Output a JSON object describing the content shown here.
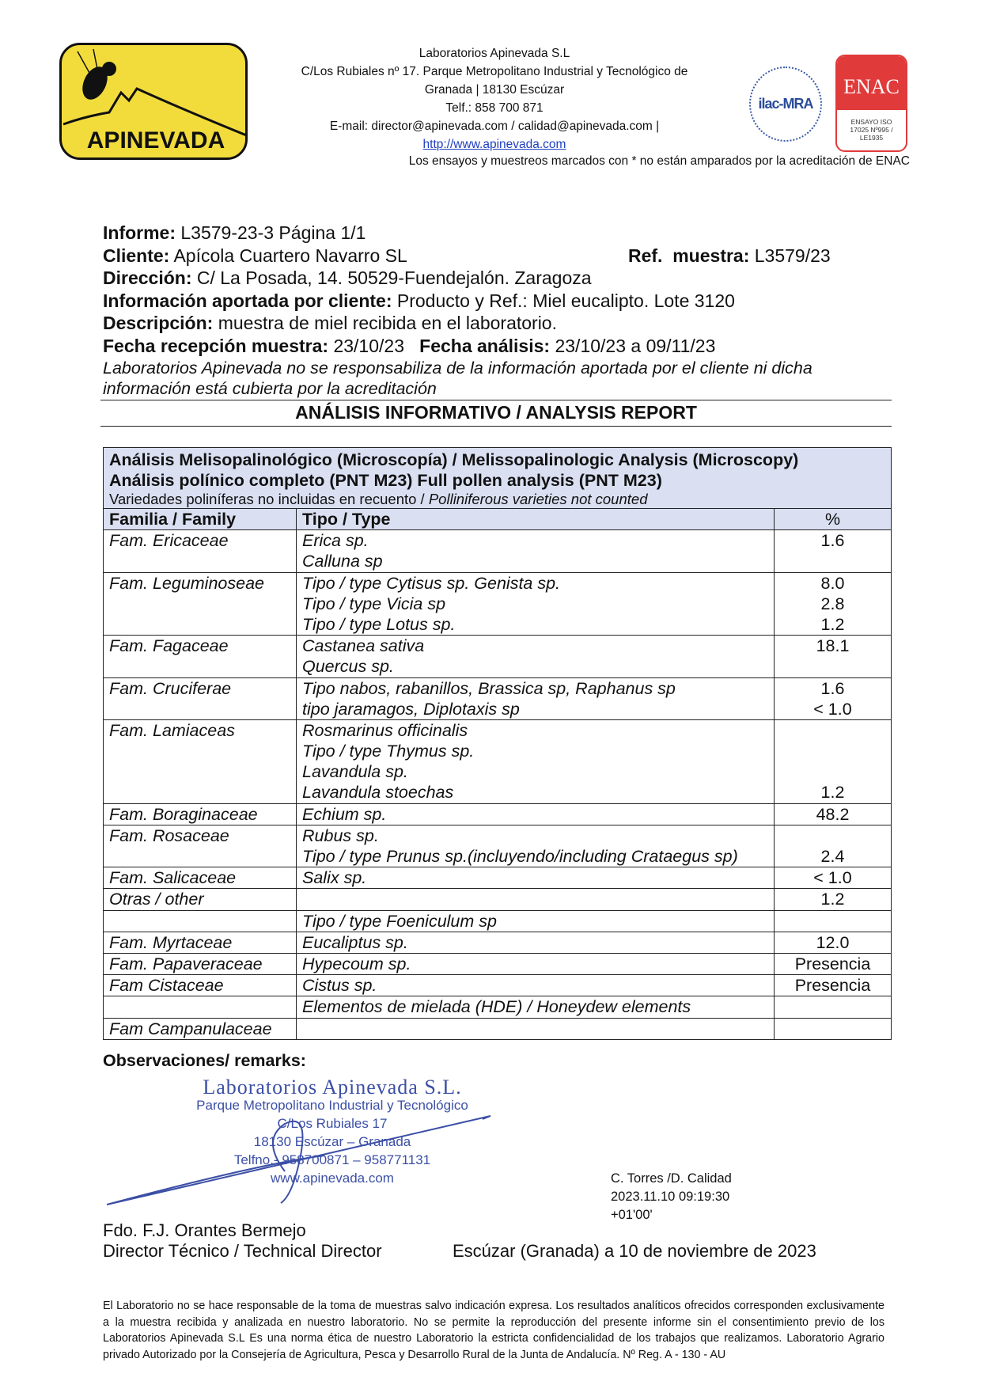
{
  "header": {
    "logo_text": "APINEVADA",
    "company": "Laboratorios Apinevada S.L",
    "address1": "C/Los Rubiales nº 17. Parque Metropolitano Industrial y Tecnológico de",
    "address2": "Granada | 18130 Escúzar",
    "phone": "Telf.: 858 700 871",
    "email": "E-mail: director@apinevada.com / calidad@apinevada.com |",
    "website": "http://www.apinevada.com",
    "ilac_logo_text": "ilac-MRA",
    "enac_logo_text": "ENAC",
    "enac_sub": "ENSAYO ISO 17025 Nº995 / LE1935",
    "enac_note": "Los ensayos y muestreos marcados con * no están amparados por la acreditación de ENAC"
  },
  "report": {
    "informe_label": "Informe:",
    "informe_value": " L3579-23-3 Página 1/1",
    "cliente_label": "Cliente:",
    "cliente_value": " Apícola Cuartero Navarro SL",
    "ref_label": "Ref.  muestra:",
    "ref_value": " L3579/23",
    "direccion_label": "Dirección:",
    "direccion_value": " C/ La Posada, 14. 50529-Fuendejalón. Zaragoza",
    "info_label": "Información aportada por cliente:",
    "info_value": " Producto y Ref.: Miel eucalipto. Lote 3120",
    "desc_label": "Descripción:",
    "desc_value": " muestra de miel recibida en el laboratorio.",
    "fecha_rec_label": "Fecha recepción muestra:",
    "fecha_rec_value": " 23/10/23",
    "fecha_an_label": "Fecha análisis:",
    "fecha_an_value": " 23/10/23 a 09/11/23",
    "disclaimer1": "Laboratorios Apinevada no se responsabiliza de la información aportada por el cliente ni dicha",
    "disclaimer2": "información está cubierta por la acreditación",
    "title": "ANÁLISIS INFORMATIVO / ANALYSIS REPORT"
  },
  "table": {
    "caption1": "Análisis Melisopalinológico (Microscopía) / Melissopalinologic Analysis (Microscopy)",
    "caption2": "Análisis polínico completo (PNT M23) Full pollen analysis (PNT M23)",
    "caption3a": "Variedades poliníferas no incluidas en recuento / ",
    "caption3b": "Polliniferous varieties not counted",
    "headers": [
      "Familia / Family",
      "Tipo / Type",
      "%"
    ],
    "rows": [
      {
        "family": "Fam. Ericaceae",
        "types": [
          "Erica sp.",
          "Calluna sp"
        ],
        "pct": [
          "1.6",
          ""
        ]
      },
      {
        "family": "Fam. Leguminoseae",
        "types": [
          "Tipo / type Cytisus sp. Genista sp.",
          "Tipo / type Vicia sp",
          "Tipo / type Lotus sp."
        ],
        "pct": [
          "8.0",
          "2.8",
          "1.2"
        ]
      },
      {
        "family": "Fam. Fagaceae",
        "types": [
          "Castanea sativa",
          "Quercus sp."
        ],
        "pct": [
          "18.1",
          ""
        ]
      },
      {
        "family": "Fam. Cruciferae",
        "types": [
          "Tipo nabos, rabanillos, Brassica sp, Raphanus sp",
          "tipo jaramagos, Diplotaxis sp"
        ],
        "pct": [
          "1.6",
          "< 1.0"
        ]
      },
      {
        "family": "Fam. Lamiaceas",
        "types": [
          "Rosmarinus officinalis",
          "Tipo / type Thymus sp.",
          "Lavandula sp.",
          "Lavandula stoechas"
        ],
        "pct": [
          "",
          "",
          "",
          "1.2"
        ]
      },
      {
        "family": "Fam. Boraginaceae",
        "types": [
          "Echium sp."
        ],
        "pct": [
          "48.2"
        ]
      },
      {
        "family": "Fam. Rosaceae",
        "types": [
          "Rubus sp.",
          "Tipo / type Prunus sp.(incluyendo/including Crataegus sp)"
        ],
        "pct": [
          "",
          "2.4"
        ]
      },
      {
        "family": "Fam. Salicaceae",
        "types": [
          "Salix sp."
        ],
        "pct": [
          "< 1.0"
        ]
      },
      {
        "family": "Otras / other",
        "types": [
          ""
        ],
        "pct": [
          "1.2"
        ]
      },
      {
        "family": "",
        "types": [
          "Tipo / type Foeniculum sp"
        ],
        "pct": [
          ""
        ]
      },
      {
        "family": "Fam. Myrtaceae",
        "types": [
          "Eucaliptus sp."
        ],
        "pct": [
          "12.0"
        ]
      },
      {
        "family": "Fam. Papaveraceae",
        "types": [
          "Hypecoum sp."
        ],
        "pct": [
          "Presencia"
        ]
      },
      {
        "family": "Fam Cistaceae",
        "types": [
          "Cistus sp."
        ],
        "pct": [
          "Presencia"
        ]
      },
      {
        "family": "",
        "types": [
          "Elementos de mielada (HDE) / Honeydew elements"
        ],
        "pct": [
          ""
        ]
      },
      {
        "family": "Fam Campanulaceae",
        "types": [
          ""
        ],
        "pct": [
          ""
        ]
      }
    ]
  },
  "remarks_label": "Observaciones/ remarks:",
  "stamp": {
    "line1": "Laboratorios Apinevada S.L.",
    "line2": "Parque Metropolitano Industrial y Tecnológico",
    "line3": "C/Los Rubiales 17",
    "line4": "18130 Escúzar – Granada",
    "line5": "Telfno.- 958700871 – 958771131",
    "line6": "www.apinevada.com"
  },
  "digital_signature": {
    "line1": "C. Torres /D. Calidad",
    "line2": "2023.11.10 09:19:30",
    "line3": "+01'00'"
  },
  "signer": {
    "name": "Fdo. F.J. Orantes Bermejo",
    "role": "Director Técnico / Technical Director"
  },
  "place_date": "Escúzar (Granada) a 10 de noviembre de 2023",
  "footer": "El Laboratorio no se hace responsable de la toma de muestras salvo indicación expresa. Los resultados analíticos ofrecidos corresponden exclusivamente a la muestra recibida y analizada en nuestro laboratorio. No se permite la reproducción del presente informe sin el consentimiento previo de los Laboratorios Apinevada S.L Es una norma ética de nuestro Laboratorio la estricta confidencialidad de los trabajos que realizamos. Laboratorio Agrario privado Autorizado por la Consejería de Agricultura, Pesca y Desarrollo Rural de la Junta de Andalucía. Nº Reg. A - 130 - AU",
  "colors": {
    "header_fill": "#dae0f2",
    "logo_yellow": "#f2dc3c",
    "enac_red": "#e03a3a",
    "stamp_blue": "#3b4fa6"
  }
}
